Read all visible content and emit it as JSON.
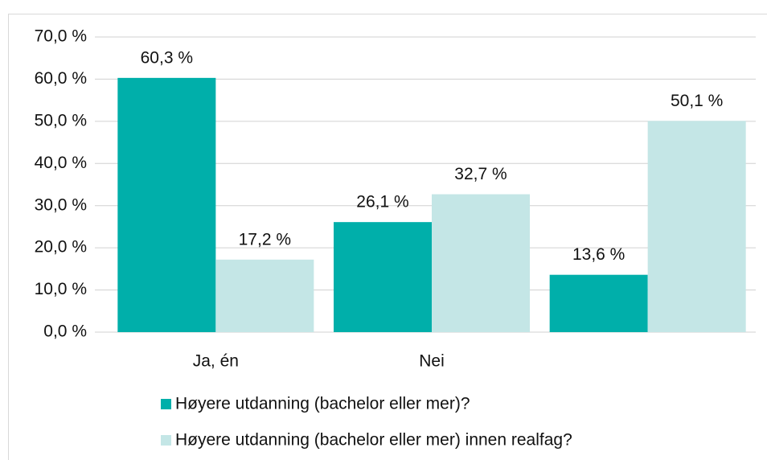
{
  "chart_data": {
    "type": "bar",
    "categories": [
      "Ja, én",
      "Nei",
      null
    ],
    "series": [
      {
        "name": "Høyere utdanning (bachelor eller mer)?",
        "color": "#00afaa",
        "values": [
          60.3,
          26.1,
          13.6
        ],
        "value_labels": [
          "60,3 %",
          "26,1 %",
          "13,6 %"
        ]
      },
      {
        "name": "Høyere utdanning (bachelor eller mer) innen realfag?",
        "color": "#c4e6e6",
        "values": [
          17.2,
          32.7,
          50.1
        ],
        "value_labels": [
          "17,2 %",
          "32,7 %",
          "50,1 %"
        ]
      }
    ],
    "ylim": [
      0,
      70
    ],
    "yticks": [
      {
        "value": 0,
        "label": "0,0 %"
      },
      {
        "value": 10,
        "label": "10,0 %"
      },
      {
        "value": 20,
        "label": "20,0 %"
      },
      {
        "value": 30,
        "label": "30,0 %"
      },
      {
        "value": 40,
        "label": "40,0 %"
      },
      {
        "value": 50,
        "label": "50,0 %"
      },
      {
        "value": 60,
        "label": "60,0 %"
      },
      {
        "value": 70,
        "label": "70,0 %"
      }
    ],
    "grid": true
  }
}
